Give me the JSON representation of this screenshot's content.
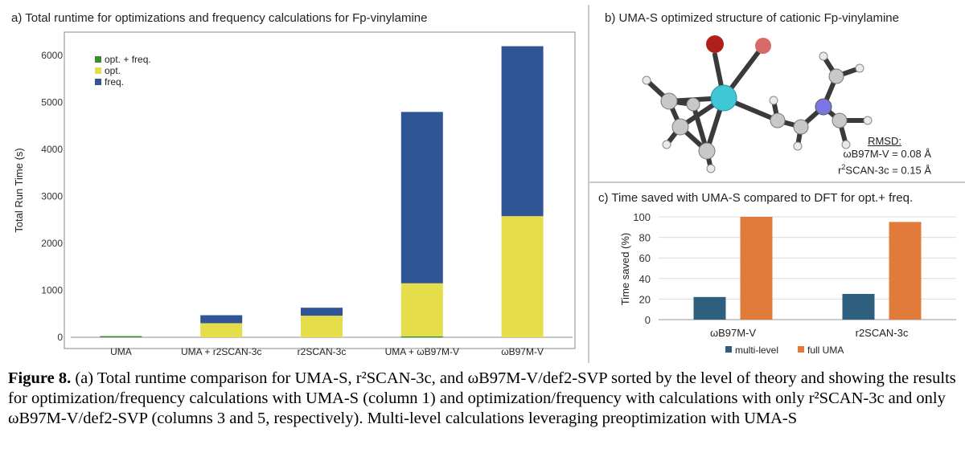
{
  "figure": {
    "panel_a_title": "a) Total runtime for optimizations and frequency calculations for Fp-vinylamine",
    "panel_b_title": "b) UMA-S optimized structure of cationic Fp-vinylamine",
    "panel_c_title": "c) Time saved with UMA-S compared to DFT for opt.+ freq.",
    "rmsd": {
      "title": "RMSD:",
      "line1": "ωB97M-V = 0.08 Å",
      "line2_prefix": "r",
      "line2_sup": "2",
      "line2_suffix": "SCAN-3c = 0.15 Å"
    },
    "colors": {
      "opt_freq": "#3e8a2e",
      "opt": "#e6dd4b",
      "freq": "#2f5597",
      "multi_level": "#2e5f7f",
      "full_uma": "#e07b3c",
      "molecule_bond": "#3a3a3a"
    }
  },
  "chart_data": [
    {
      "type": "bar",
      "stacked": true,
      "title": "",
      "xlabel": "",
      "ylabel": "Total Run Time (s)",
      "ylim": [
        0,
        6500
      ],
      "yticks": [
        0,
        1000,
        2000,
        3000,
        4000,
        5000,
        6000
      ],
      "categories": [
        "UMA",
        "UMA + r2SCAN-3c",
        "r2SCAN-3c",
        "UMA + ωB97M-V",
        "ωB97M-V"
      ],
      "series": [
        {
          "name": "opt. + freq.",
          "color": "#3e8a2e",
          "values": [
            25,
            0,
            0,
            20,
            0
          ]
        },
        {
          "name": "opt.",
          "color": "#e6dd4b",
          "values": [
            0,
            300,
            460,
            1130,
            2580
          ]
        },
        {
          "name": "freq.",
          "color": "#2f5597",
          "values": [
            0,
            170,
            170,
            3650,
            3620
          ]
        }
      ],
      "legend": "top-left",
      "grid": false
    },
    {
      "type": "bar",
      "stacked": false,
      "title": "",
      "xlabel": "",
      "ylabel": "Time saved (%)",
      "ylim": [
        0,
        100
      ],
      "yticks": [
        0,
        20,
        40,
        60,
        80,
        100
      ],
      "categories": [
        "ωB97M-V",
        "r2SCAN-3c"
      ],
      "series": [
        {
          "name": "multi-level",
          "color": "#2e5f7f",
          "values": [
            22,
            25
          ]
        },
        {
          "name": "full UMA",
          "color": "#e07b3c",
          "values": [
            100,
            95
          ]
        }
      ],
      "legend": "bottom",
      "grid": true
    }
  ],
  "caption": {
    "label": "Figure 8.",
    "text": " (a) Total runtime comparison for UMA-S, r²SCAN-3c, and ωB97M-V/def2-SVP sorted by the level of theory and showing the results for optimization/frequency calculations with UMA-S (column 1) and optimization/frequency with calculations with only r²SCAN-3c and only ωB97M-V/def2-SVP (columns 3 and 5, respectively). Multi-level calculations leveraging preoptimization with UMA-S"
  }
}
